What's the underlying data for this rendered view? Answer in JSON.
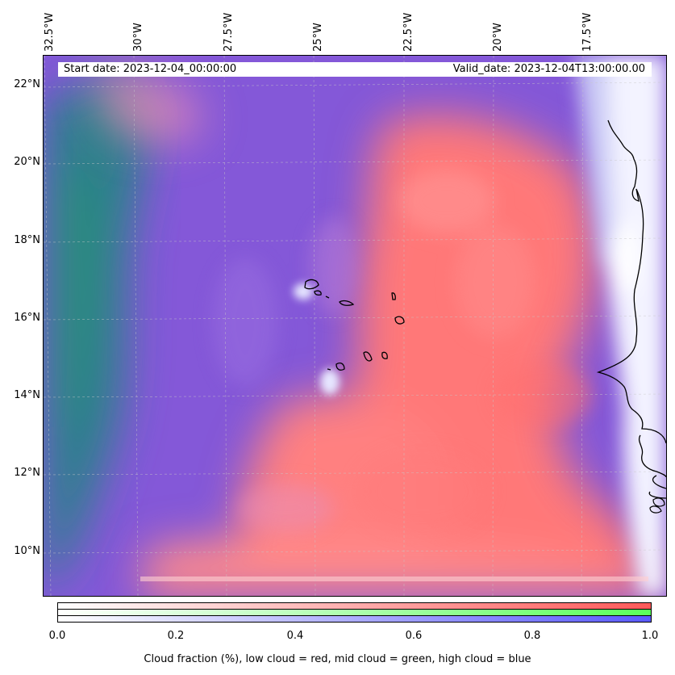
{
  "map": {
    "start_date": "Start date: 2023-12-04_00:00:00",
    "valid_date": "Valid_date: 2023-12-04T13:00:00.00",
    "lon_labels": [
      "32.5°W",
      "30°W",
      "27.5°W",
      "25°W",
      "22.5°W",
      "20°W",
      "17.5°W"
    ],
    "lat_labels": [
      "22°N",
      "20°N",
      "18°N",
      "16°N",
      "14°N",
      "12°N",
      "10°N"
    ],
    "extent": {
      "lon_min": -32.7,
      "lon_max": -15.6,
      "lat_min": 8.8,
      "lat_max": 22.8
    },
    "gridlines": true
  },
  "colorbar": {
    "ticks": [
      "0.0",
      "0.2",
      "0.4",
      "0.6",
      "0.8",
      "1.0"
    ],
    "label": "Cloud fraction (%), low cloud = red, mid cloud = green, high cloud = blue",
    "colors": {
      "low": "#ff5050",
      "mid": "#50ff50",
      "high": "#5050ff"
    }
  },
  "layers": {
    "low_cloud_color": "#ff7b7b",
    "mid_cloud_color": "#2f8a8a",
    "high_cloud_color": "#7f55de",
    "clear_color": "#ffffff"
  }
}
